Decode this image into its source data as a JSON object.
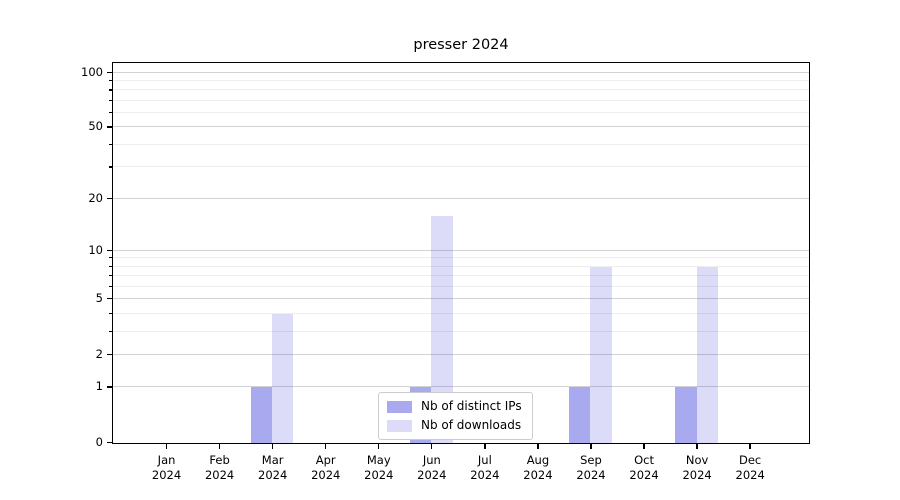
{
  "chart_data": {
    "type": "bar",
    "title": "presser 2024",
    "x_year": "2024",
    "categories": [
      "Jan",
      "Feb",
      "Mar",
      "Apr",
      "May",
      "Jun",
      "Jul",
      "Aug",
      "Sep",
      "Oct",
      "Nov",
      "Dec"
    ],
    "series": [
      {
        "name": "Nb of distinct IPs",
        "color": "rgba(68,68,221,0.46)",
        "values": [
          0,
          0,
          1,
          0,
          0,
          1,
          0,
          0,
          1,
          0,
          1,
          0
        ]
      },
      {
        "name": "Nb of downloads",
        "color": "rgba(68,68,221,0.19)",
        "values": [
          0,
          0,
          4,
          0,
          0,
          16,
          0,
          0,
          8,
          0,
          8,
          0
        ]
      }
    ],
    "yscale": "log1p",
    "ylabel": "",
    "xlabel": "",
    "ylim": [
      0,
      111.4
    ],
    "xlim": [
      -1,
      12.1
    ],
    "bar_width": 0.4,
    "bar_offsets": [
      -0.2,
      0.2
    ],
    "y_major_ticks": [
      0,
      1,
      2,
      5,
      10,
      20,
      50,
      100
    ],
    "y_minor_ticks": [
      3,
      4,
      6,
      7,
      8,
      9,
      30,
      40,
      60,
      70,
      80,
      90
    ],
    "grid": {
      "major_color": "#d2d2d2",
      "minor_color": "#ededed"
    },
    "legend": {
      "position": "lower center"
    },
    "text_color": "#000000",
    "spine_color": "#000000"
  }
}
